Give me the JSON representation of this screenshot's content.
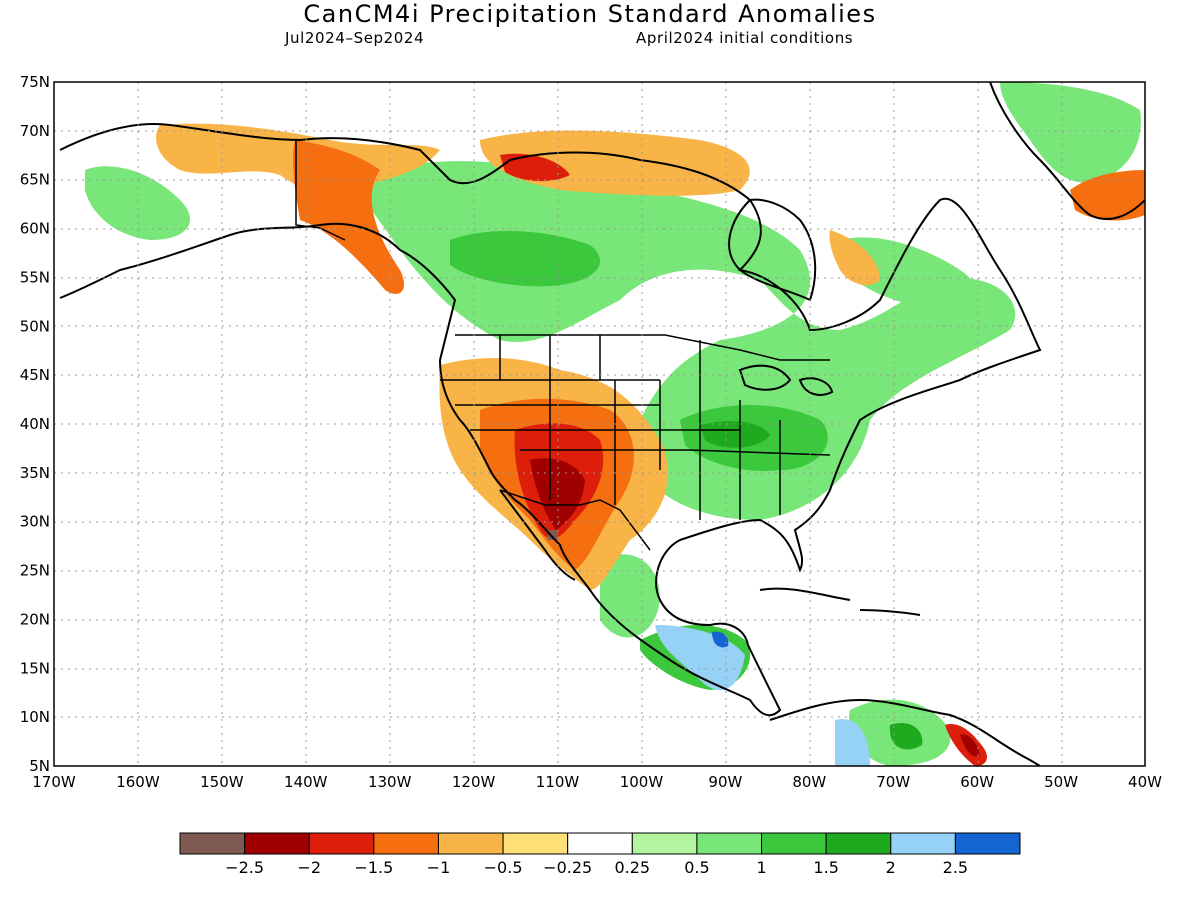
{
  "title": "CanCM4i Precipitation Standard Anomalies",
  "subtitle_left": "Jul2024–Sep2024",
  "subtitle_right": "April2024 initial conditions",
  "map": {
    "lon_range": [
      -170,
      -40
    ],
    "lat_range": [
      5,
      75
    ],
    "grid": true,
    "lat_ticks": [
      "5N",
      "10N",
      "15N",
      "20N",
      "25N",
      "30N",
      "35N",
      "40N",
      "45N",
      "50N",
      "55N",
      "60N",
      "65N",
      "70N",
      "75N"
    ],
    "lon_ticks": [
      "170W",
      "160W",
      "150W",
      "140W",
      "130W",
      "120W",
      "110W",
      "100W",
      "90W",
      "80W",
      "70W",
      "60W",
      "50W",
      "40W"
    ]
  },
  "colorbar": {
    "colors": [
      "#7f5a50",
      "#a00000",
      "#dc1e0a",
      "#f56e10",
      "#f8b447",
      "#fde178",
      "#ffffff",
      "#b4f4a0",
      "#78e678",
      "#3cc83c",
      "#1eaa1e",
      "#96d2f5",
      "#1464d2"
    ],
    "labels": [
      "−2.5",
      "−2",
      "−1.5",
      "−1",
      "−0.5",
      "−0.25",
      "0.25",
      "0.5",
      "1",
      "1.5",
      "2",
      "2.5"
    ]
  },
  "palette": {
    "brown": "#7f5a50",
    "dark_red": "#a00000",
    "red": "#dc1e0a",
    "orange": "#f56e10",
    "light_orange": "#f8b447",
    "yellow": "#fde178",
    "light_green": "#b4f4a0",
    "green": "#78e678",
    "mid_green": "#3cc83c",
    "dark_green": "#1eaa1e",
    "light_blue": "#96d2f5",
    "blue": "#1464d2"
  }
}
